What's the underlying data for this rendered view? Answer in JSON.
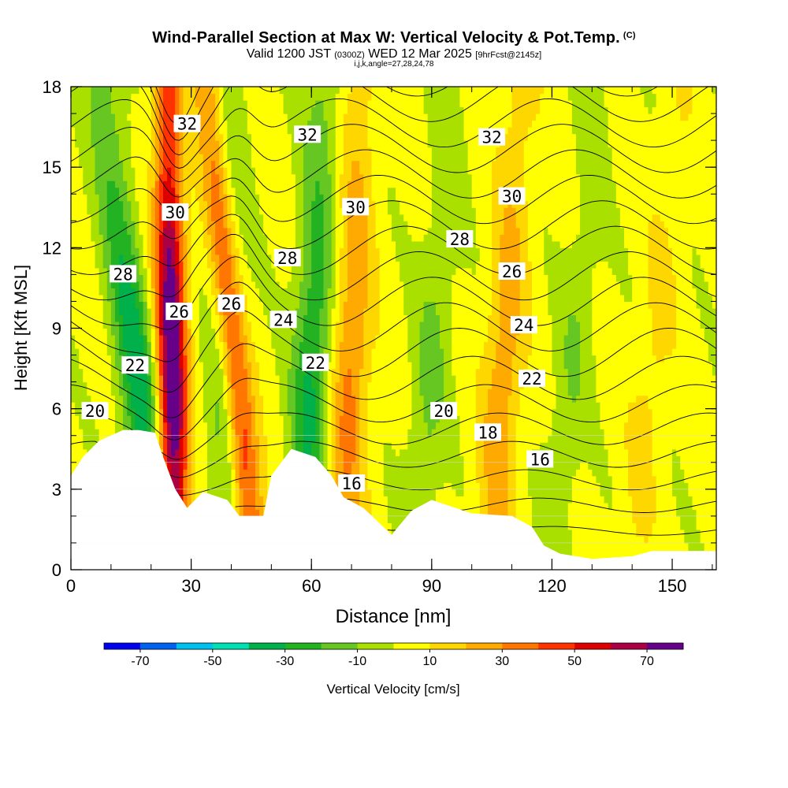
{
  "chart_data": {
    "type": "heatmap",
    "title": "Wind-Parallel Section at Max W: Vertical Velocity & Pot.Temp.",
    "title_mark": "(C)",
    "subtitle_parts": {
      "valid": "Valid 1200 JST",
      "utc": "(0300Z)",
      "date": "WED 12 Mar 2025",
      "fcst": "[9hrFcst@2145z]"
    },
    "grid_info": "i,j,k,angle=27,28,24,78",
    "xlabel": "Distance [nm]",
    "ylabel": "Height [Kft MSL]",
    "xlim": [
      0,
      161
    ],
    "ylim": [
      0,
      18
    ],
    "x_ticks": [
      "0",
      "30",
      "60",
      "90",
      "120",
      "150"
    ],
    "y_ticks": [
      "0",
      "3",
      "6",
      "9",
      "12",
      "15",
      "18"
    ],
    "colorbar": {
      "label": "Vertical Velocity [cm/s]",
      "tick_labels": [
        "-70",
        "-50",
        "-30",
        "-10",
        "10",
        "30",
        "50",
        "70"
      ],
      "levels": [
        -80,
        -70,
        -60,
        -50,
        -40,
        -30,
        -20,
        -10,
        0,
        10,
        20,
        30,
        40,
        50,
        60,
        70,
        80
      ],
      "colors": [
        "#0000ee",
        "#0062ee",
        "#00c0ee",
        "#00e0b0",
        "#00b04a",
        "#22b222",
        "#66c622",
        "#aae000",
        "#ffff00",
        "#ffd700",
        "#ffaa00",
        "#ff7700",
        "#ff3300",
        "#dd0000",
        "#aa0044",
        "#660088"
      ]
    },
    "updrafts": [
      {
        "x_bottom": 26,
        "x_top": 24,
        "peak": 80
      },
      {
        "x_bottom": 46,
        "x_top": 34,
        "peak": 50
      },
      {
        "x_bottom": 68,
        "x_top": 72,
        "peak": 30
      },
      {
        "x_bottom": 105,
        "x_top": 112,
        "peak": 25
      },
      {
        "x_bottom": 140,
        "x_top": 152,
        "peak": 10
      }
    ],
    "downdrafts": [
      {
        "x_bottom": 22,
        "x_top": 8,
        "peak": -40
      },
      {
        "x_bottom": 38,
        "x_top": 40,
        "peak": -20
      },
      {
        "x_bottom": 58,
        "x_top": 63,
        "peak": -35
      },
      {
        "x_bottom": 86,
        "x_top": 95,
        "peak": -15
      },
      {
        "x_bottom": 120,
        "x_top": 132,
        "peak": -12
      }
    ],
    "terrain": [
      [
        0,
        3.5
      ],
      [
        3,
        4.2
      ],
      [
        7,
        4.8
      ],
      [
        13,
        5.2
      ],
      [
        17,
        5.2
      ],
      [
        21,
        5.1
      ],
      [
        23,
        4.2
      ],
      [
        26,
        3.0
      ],
      [
        29,
        2.3
      ],
      [
        33,
        2.9
      ],
      [
        39,
        2.6
      ],
      [
        42,
        2.0
      ],
      [
        48,
        2.0
      ],
      [
        50,
        3.5
      ],
      [
        55,
        4.5
      ],
      [
        61,
        4.2
      ],
      [
        65,
        3.5
      ],
      [
        68,
        2.7
      ],
      [
        73,
        2.3
      ],
      [
        80,
        1.3
      ],
      [
        85,
        2.2
      ],
      [
        90,
        2.6
      ],
      [
        100,
        2.1
      ],
      [
        110,
        2.0
      ],
      [
        115,
        1.6
      ],
      [
        118,
        0.9
      ],
      [
        122,
        0.6
      ],
      [
        130,
        0.4
      ],
      [
        140,
        0.5
      ],
      [
        145,
        0.7
      ],
      [
        161,
        0.7
      ]
    ],
    "theta_labels": [
      {
        "text": "32",
        "x": 29,
        "y": 16.6
      },
      {
        "text": "32",
        "x": 59,
        "y": 16.2
      },
      {
        "text": "32",
        "x": 105,
        "y": 16.1
      },
      {
        "text": "30",
        "x": 26,
        "y": 13.3
      },
      {
        "text": "30",
        "x": 71,
        "y": 13.5
      },
      {
        "text": "30",
        "x": 110,
        "y": 13.9
      },
      {
        "text": "28",
        "x": 13,
        "y": 11.0
      },
      {
        "text": "28",
        "x": 54,
        "y": 11.6
      },
      {
        "text": "28",
        "x": 97,
        "y": 12.3
      },
      {
        "text": "26",
        "x": 27,
        "y": 9.6
      },
      {
        "text": "26",
        "x": 40,
        "y": 9.9
      },
      {
        "text": "26",
        "x": 110,
        "y": 11.1
      },
      {
        "text": "24",
        "x": 53,
        "y": 9.3
      },
      {
        "text": "24",
        "x": 113,
        "y": 9.1
      },
      {
        "text": "22",
        "x": 16,
        "y": 7.6
      },
      {
        "text": "22",
        "x": 61,
        "y": 7.7
      },
      {
        "text": "22",
        "x": 115,
        "y": 7.1
      },
      {
        "text": "20",
        "x": 6,
        "y": 5.9
      },
      {
        "text": "20",
        "x": 93,
        "y": 5.9
      },
      {
        "text": "18",
        "x": 104,
        "y": 5.1
      },
      {
        "text": "16",
        "x": 117,
        "y": 4.1
      },
      {
        "text": "16",
        "x": 70,
        "y": 3.2
      }
    ],
    "grid": false,
    "legend": "bottom"
  }
}
